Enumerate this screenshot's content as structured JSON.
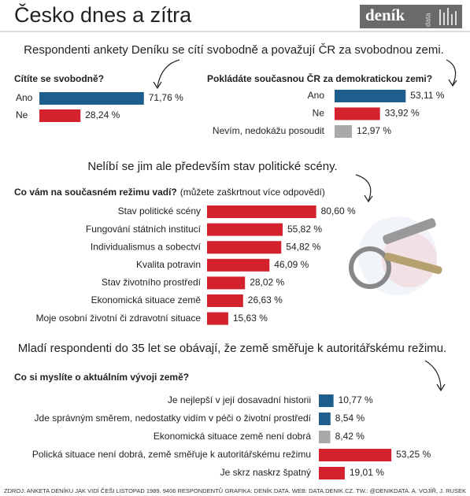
{
  "title": "Česko dnes a zítra",
  "logo": "deník",
  "logo_tag": "data",
  "headlines": [
    "Respondenti ankety Deníku se cítí svobodně a považují ČR za svobodnou zemi.",
    "Nelíbí se jim ale především stav politické scény.",
    "Mladí respondenti do 35 let se obávají, že země směřuje k autoritářskému režimu."
  ],
  "chart_data": [
    {
      "type": "bar",
      "title": "Cítíte se svobodně?",
      "categories": [
        "Ano",
        "Ne"
      ],
      "values": [
        71.76,
        28.24
      ],
      "value_labels": [
        "71,76 %",
        "28,24 %"
      ],
      "colors": [
        "#1d5e8c",
        "#d3222e"
      ]
    },
    {
      "type": "bar",
      "title": "Pokládáte současnou ČR za demokratickou zemi?",
      "categories": [
        "Ano",
        "Ne",
        "Nevím, nedokážu posoudit"
      ],
      "values": [
        53.11,
        33.92,
        12.97
      ],
      "value_labels": [
        "53,11 %",
        "33,92 %",
        "12,97 %"
      ],
      "colors": [
        "#1d5e8c",
        "#d3222e",
        "#a9a9a9"
      ]
    },
    {
      "type": "bar",
      "title": "Co vám na současném režimu vadí?",
      "note": "(můžete zaškrtnout více odpovědí)",
      "categories": [
        "Stav politické scény",
        "Fungování státních institucí",
        "Individualismus a sobectví",
        "Kvalita potravin",
        "Stav životního prostředí",
        "Ekonomická situace země",
        "Moje osobní životní či zdravotní situace"
      ],
      "values": [
        80.6,
        55.82,
        54.82,
        46.09,
        28.02,
        26.63,
        15.63
      ],
      "value_labels": [
        "80,60 %",
        "55,82 %",
        "54,82 %",
        "46,09 %",
        "28,02 %",
        "26,63 %",
        "15,63 %"
      ],
      "colors": [
        "#d3222e",
        "#d3222e",
        "#d3222e",
        "#d3222e",
        "#d3222e",
        "#d3222e",
        "#d3222e"
      ]
    },
    {
      "type": "bar",
      "title": "Co si myslíte o aktuálním vývoji země?",
      "categories": [
        "Je nejlepší v její dosavadní historii",
        "Jde správným směrem, nedostatky vidím v péči o životní prostředí",
        "Ekonomická situace země není dobrá",
        "Polická situace není dobrá, země směřuje k autoritářskému režimu",
        "Je skrz naskrz špatný"
      ],
      "values": [
        10.77,
        8.54,
        8.42,
        53.25,
        19.01
      ],
      "value_labels": [
        "10,77 %",
        "8,54 %",
        "8,42 %",
        "53,25 %",
        "19,01 %"
      ],
      "colors": [
        "#1d5e8c",
        "#1d5e8c",
        "#a9a9a9",
        "#d3222e",
        "#d3222e"
      ]
    }
  ],
  "source": "ZDROJ: ANKETA DENÍKU JAK VIDÍ ČEŠI LISTOPAD 1989. 9406 RESPONDENTŮ",
  "credits": "GRAFIKA: DENÍK DATA. WEB: DATA.DENIK.CZ. TW.: @DENIKDATA. A. VOJÍŘ, J. RUSEK"
}
